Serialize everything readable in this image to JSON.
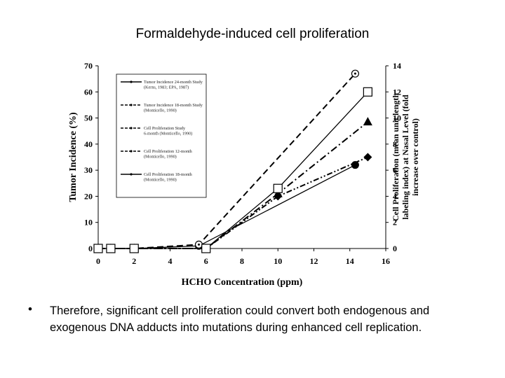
{
  "slide": {
    "title": "Formaldehyde-induced cell proliferation",
    "bullet_symbol": "•",
    "bullet_text": "Therefore, significant cell proliferation could convert both endogenous and exogenous DNA adducts into mutations during enhanced cell replication."
  },
  "chart_data": {
    "type": "line",
    "xlabel": "HCHO Concentration (ppm)",
    "ylabel": "Tumor Incidence (%)",
    "y2label_lines": [
      "Cell Proliferation (mean unit length",
      "labeling index) at Nasal Level (fold",
      "increase over control)"
    ],
    "xlim": [
      0,
      16
    ],
    "ylim": [
      0,
      70
    ],
    "y2lim": [
      0,
      14
    ],
    "xticks": [
      0,
      2,
      4,
      6,
      8,
      10,
      12,
      14,
      16
    ],
    "yticks": [
      0,
      10,
      20,
      30,
      40,
      50,
      60,
      70
    ],
    "y2ticks": [
      0,
      2,
      4,
      6,
      8,
      10,
      12,
      14
    ],
    "legend_position": "top-left inside",
    "series": [
      {
        "name": "Tumor Incidence 24-month Study (Kerns, 1983; EPA, 1987)",
        "axis": "left",
        "marker": "circle-filled",
        "dash": "solid",
        "x": [
          0,
          0.7,
          2,
          5.6,
          14.3
        ],
        "y": [
          0,
          0,
          0,
          1,
          32
        ]
      },
      {
        "name": "Tumor Incidence 18-month Study (Monticello, 1990)",
        "axis": "left",
        "marker": "circle-dot",
        "dash": "dashed",
        "x": [
          0,
          0.7,
          2,
          5.6,
          14.3
        ],
        "y": [
          0,
          0,
          0,
          1.5,
          67
        ]
      },
      {
        "name": "Cell Proliferation Study 6-month (Monticello, 1990)",
        "axis": "right",
        "marker": "triangle",
        "dash": "dash-dot",
        "x": [
          0,
          0.7,
          2,
          6,
          10,
          15
        ],
        "y": [
          0,
          0,
          0,
          0,
          4.2,
          9.7
        ]
      },
      {
        "name": "Cell Proliferation 12-month (Monticello, 1990)",
        "axis": "right",
        "marker": "diamond",
        "dash": "dash-dot-dot",
        "x": [
          0,
          0.7,
          2,
          6,
          10,
          15
        ],
        "y": [
          0,
          0,
          0,
          0,
          4.0,
          7.0
        ]
      },
      {
        "name": "Cell Proliferation 18-month (Monticello, 1990)",
        "axis": "right",
        "marker": "square-open",
        "dash": "solid",
        "x": [
          0,
          0.7,
          2,
          6,
          10,
          15
        ],
        "y": [
          0,
          0,
          0,
          0,
          4.6,
          12.0
        ]
      }
    ]
  }
}
